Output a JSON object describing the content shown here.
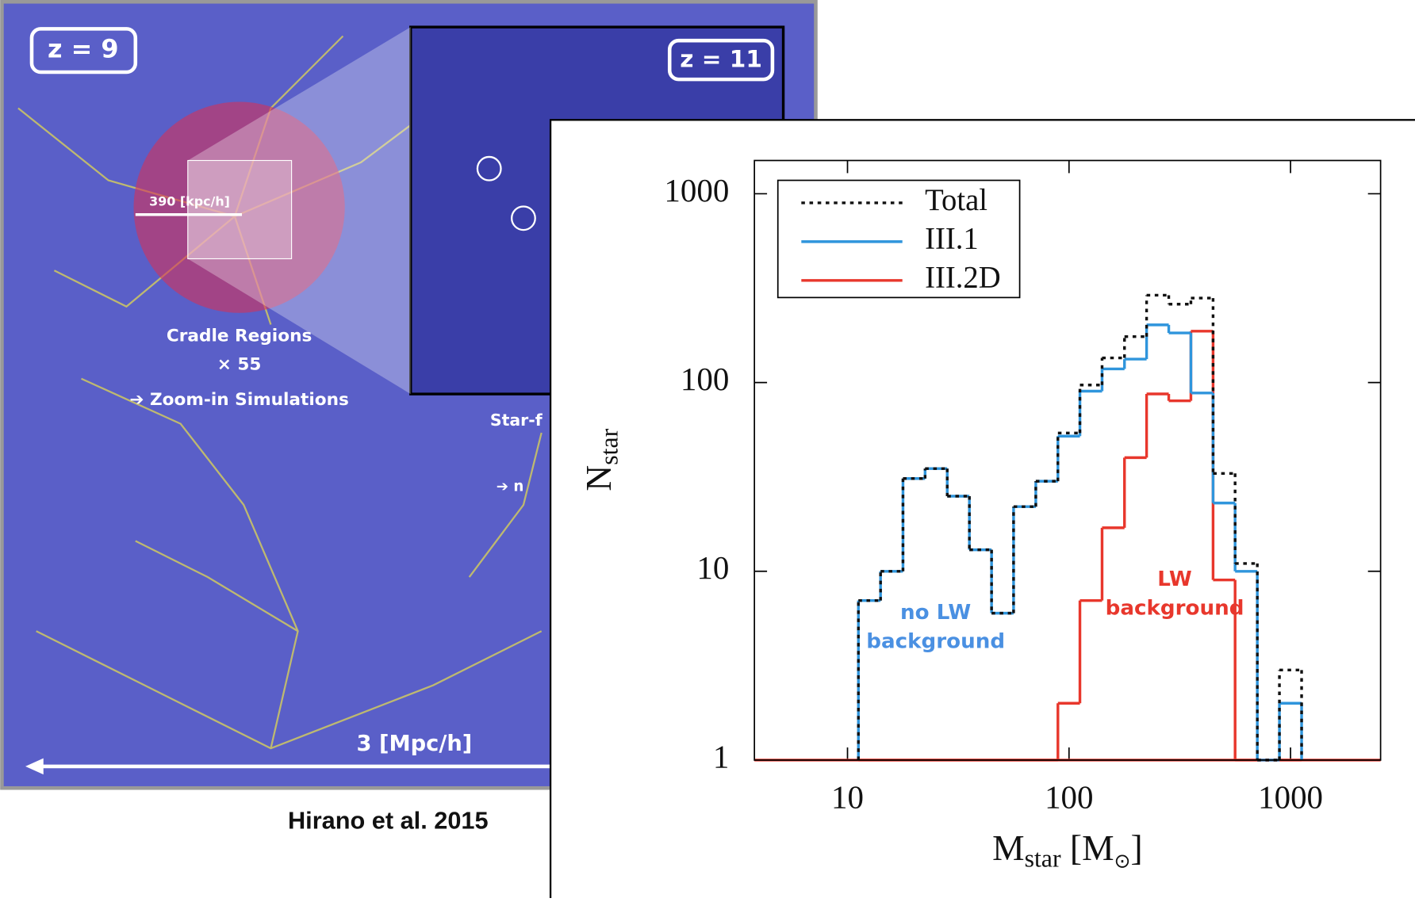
{
  "left_panel": {
    "labels": [
      "z = 9",
      "z = 11",
      "390 [kpc/h]",
      "Cradle Regions",
      "× 55",
      "➔ Zoom-in Simulations",
      "Star-f",
      "➔ n",
      "3 [Mpc/h]"
    ],
    "credit": "Hirano et al. 2015"
  },
  "chart_data": {
    "type": "histogram",
    "xlabel": {
      "main": "M",
      "sub": "star",
      "unit": "[M",
      "unit_sub": "⊙",
      "close": "]"
    },
    "ylabel": {
      "main": "N",
      "sub": "star"
    },
    "bins": [
      11.2,
      14.1,
      17.8,
      22.4,
      28.2,
      35.5,
      44.7,
      56.2,
      70.8,
      89.1,
      112,
      141,
      178,
      224,
      282,
      355,
      447,
      562,
      708,
      891,
      1122
    ],
    "series": [
      {
        "name": "III.2D",
        "color": "#e8372c",
        "style": "solid",
        "values": [
          1,
          1,
          1,
          1,
          1,
          1,
          1,
          1,
          1,
          2,
          7,
          17,
          40,
          87,
          80,
          187,
          9,
          1,
          1,
          1
        ]
      },
      {
        "name": "III.1",
        "color": "#2f95dc",
        "style": "solid",
        "values": [
          7,
          10,
          31,
          35,
          25,
          13,
          6,
          22,
          30,
          52,
          90,
          118,
          133,
          202,
          183,
          88,
          23,
          10,
          1,
          2
        ]
      },
      {
        "name": "Total",
        "color": "#111111",
        "style": "dotted",
        "values": [
          7,
          10,
          31,
          35,
          25,
          13,
          6,
          22,
          30,
          54,
          97,
          135,
          175,
          290,
          260,
          280,
          33,
          11,
          1,
          3
        ]
      }
    ],
    "legend_order": [
      2,
      1,
      0
    ],
    "xlim": [
      3.8,
      2550
    ],
    "ylim": [
      1,
      1500
    ],
    "xscale": "log",
    "yscale": "log",
    "xticks": [
      10,
      100,
      1000
    ],
    "yticks": [
      1,
      10,
      100,
      1000
    ],
    "annotations": [
      {
        "lines": [
          "no LW",
          "background"
        ],
        "color": "#4a90e2",
        "x": 25,
        "y": 6
      },
      {
        "lines": [
          "LW",
          "background"
        ],
        "color": "#e8372c",
        "x": 300,
        "y": 9
      }
    ]
  }
}
